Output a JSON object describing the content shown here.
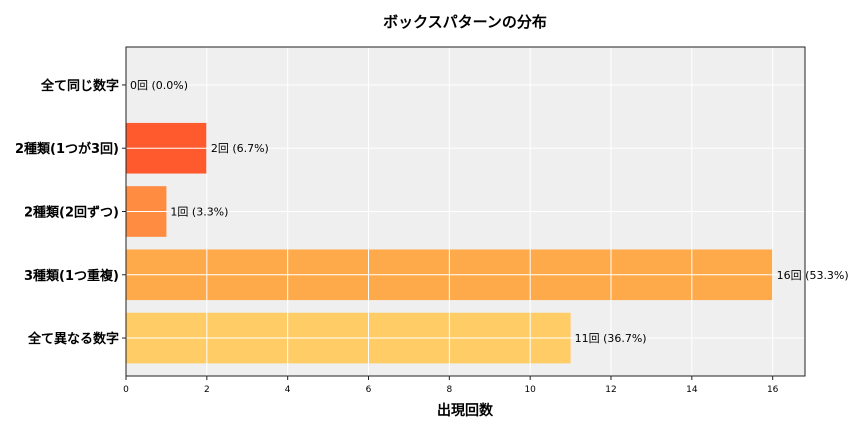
{
  "chart_data": {
    "type": "bar",
    "orientation": "horizontal",
    "title": "ボックスパターンの分布",
    "xlabel": "出現回数",
    "ylabel": "",
    "categories": [
      "全て同じ数字",
      "2種類(1つが3回)",
      "2種類(2回ずつ)",
      "3種類(1つ重複)",
      "全て異なる数字"
    ],
    "values": [
      0,
      2,
      1,
      16,
      11
    ],
    "data_labels": [
      "0回 (0.0%)",
      "2回 (6.7%)",
      "1回 (3.3%)",
      "16回 (53.3%)",
      "11回 (36.7%)"
    ],
    "colors": [
      "#ff5a2e",
      "#ff5a2e",
      "#ff8c40",
      "#ffaa4a",
      "#ffcc66"
    ],
    "xlim": [
      0,
      16.8
    ],
    "xticks": [
      0,
      2,
      4,
      6,
      8,
      10,
      12,
      14,
      16
    ],
    "grid": true,
    "background": "#efefef"
  }
}
